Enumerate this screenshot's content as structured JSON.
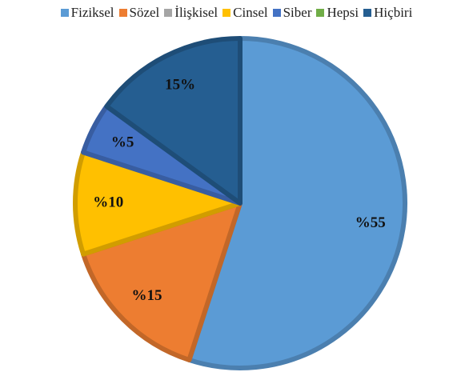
{
  "chart_data": {
    "type": "pie",
    "categories": [
      "Fiziksel",
      "Sözel",
      "İlişkisel",
      "Cinsel",
      "Siber",
      "Hepsi",
      "Hiçbiri"
    ],
    "values": [
      55,
      15,
      0,
      10,
      5,
      0,
      15
    ],
    "value_labels": [
      "%55",
      "%15",
      null,
      "%10",
      "%5",
      null,
      "15%"
    ],
    "colors": [
      "#5b9bd5",
      "#ed7d31",
      "#a5a5a5",
      "#ffc000",
      "#4472c4",
      "#70ad47",
      "#255e91"
    ],
    "legend": "top"
  }
}
